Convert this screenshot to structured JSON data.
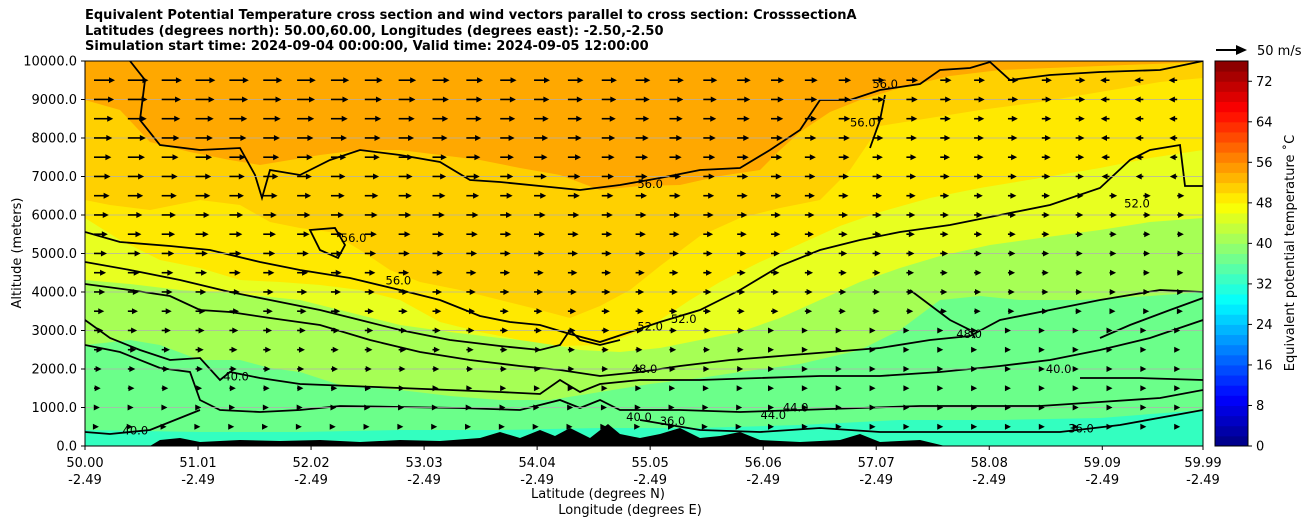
{
  "chart_data": {
    "type": "heatmap",
    "title_lines": [
      "Equivalent Potential Temperature cross section and wind vectors parallel to cross section: CrosssectionA",
      "Latitudes (degrees north): 50.00,60.00, Longitudes (degrees east): -2.50,-2.50",
      "Simulation start time: 2024-09-04 00:00:00, Valid time: 2024-09-05 12:00:00"
    ],
    "xlabel": "Latitude (degrees N)",
    "xlabel2": "Longitude (degrees E)",
    "ylabel": "Altitude (meters)",
    "x_ticks": [
      {
        "lat": "50.00",
        "lon": "-2.49"
      },
      {
        "lat": "51.01",
        "lon": "-2.49"
      },
      {
        "lat": "52.02",
        "lon": "-2.49"
      },
      {
        "lat": "53.03",
        "lon": "-2.49"
      },
      {
        "lat": "54.04",
        "lon": "-2.49"
      },
      {
        "lat": "55.05",
        "lon": "-2.49"
      },
      {
        "lat": "56.06",
        "lon": "-2.49"
      },
      {
        "lat": "57.07",
        "lon": "-2.49"
      },
      {
        "lat": "58.08",
        "lon": "-2.49"
      },
      {
        "lat": "59.09",
        "lon": "-2.49"
      },
      {
        "lat": "59.99",
        "lon": "-2.49"
      }
    ],
    "xlim": [
      50.0,
      59.99
    ],
    "y_ticks": [
      "0.0",
      "1000.0",
      "2000.0",
      "3000.0",
      "4000.0",
      "5000.0",
      "6000.0",
      "7000.0",
      "8000.0",
      "9000.0",
      "10000.0"
    ],
    "ylim": [
      0,
      10000
    ],
    "grid": "horizontal",
    "colorbar": {
      "label": "Equivalent potential temperature $^\\circ$C",
      "label_display": "Equivalent potential temperature ˚C",
      "ticks": [
        "0",
        "8",
        "16",
        "24",
        "32",
        "40",
        "48",
        "56",
        "64",
        "72"
      ],
      "range": [
        0,
        76
      ]
    },
    "quiver_key": {
      "label": "50 m/s"
    },
    "contour_labels": [
      {
        "text": "56.0",
        "lat": 55.05,
        "alt": 6700
      },
      {
        "text": "56.0",
        "lat": 57.15,
        "alt": 9300
      },
      {
        "text": "56.0",
        "lat": 56.95,
        "alt": 8300
      },
      {
        "text": "56.0",
        "lat": 52.4,
        "alt": 5300
      },
      {
        "text": "56.0",
        "lat": 52.8,
        "alt": 4200
      },
      {
        "text": "52.0",
        "lat": 55.05,
        "alt": 3000
      },
      {
        "text": "52.0",
        "lat": 55.35,
        "alt": 3200
      },
      {
        "text": "52.0",
        "lat": 59.4,
        "alt": 6200
      },
      {
        "text": "48.0",
        "lat": 55.0,
        "alt": 1900
      },
      {
        "text": "48.0",
        "lat": 57.9,
        "alt": 2800
      },
      {
        "text": "40.0",
        "lat": 51.35,
        "alt": 1700
      },
      {
        "text": "40.0",
        "lat": 58.7,
        "alt": 1900
      },
      {
        "text": "40.0",
        "lat": 54.95,
        "alt": 650
      },
      {
        "text": "40.0",
        "lat": 50.45,
        "alt": 300
      },
      {
        "text": "44.0",
        "lat": 56.15,
        "alt": 700
      },
      {
        "text": "44.0",
        "lat": 56.35,
        "alt": 900
      },
      {
        "text": "36.0",
        "lat": 58.9,
        "alt": 350
      },
      {
        "text": "36.0",
        "lat": 55.25,
        "alt": 550
      }
    ],
    "colors": {
      "c36": "#33ffc0",
      "c40": "#6bff8a",
      "c44": "#a6ff55",
      "c48": "#e8ff20",
      "c52": "#ffe900",
      "c56": "#ffd000",
      "c60": "#ffa800",
      "terrain": "#000000"
    }
  }
}
